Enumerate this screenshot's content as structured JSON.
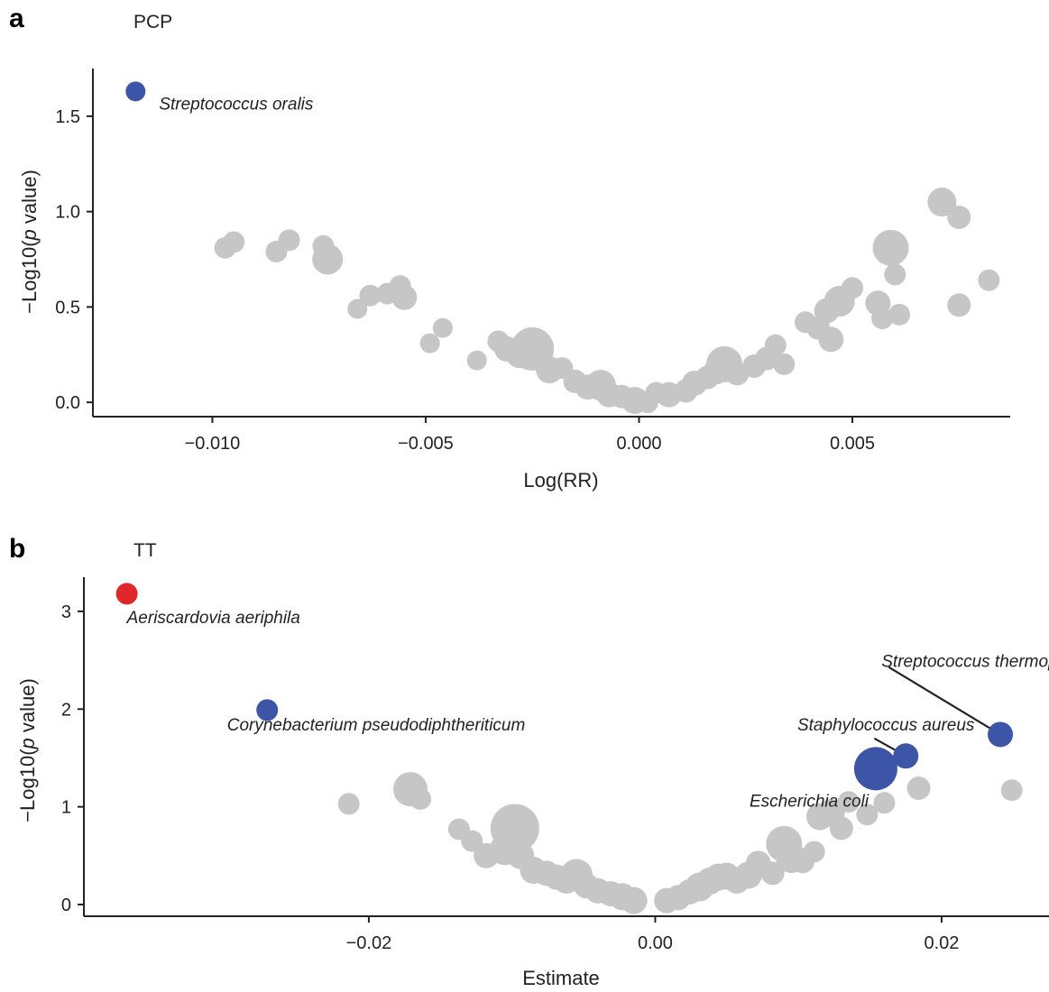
{
  "colors": {
    "neutral": "#c6c6c6",
    "blue": "#3c55a6",
    "red": "#e0282a",
    "axis": "#222222"
  },
  "chart_data": [
    {
      "type": "scatter",
      "panel_label": "a",
      "title": "PCP",
      "xlabel": "Log(RR)",
      "ylabel_pre": "−Log10(",
      "ylabel_it": "p",
      "ylabel_post": " value)",
      "xlim": [
        -0.0128,
        0.0087
      ],
      "ylim": [
        -0.075,
        1.75
      ],
      "xticks": [
        -0.01,
        -0.005,
        0,
        0.005
      ],
      "xtick_labels": [
        "−0.010",
        "−0.005",
        "0.000",
        "0.005"
      ],
      "yticks": [
        0,
        0.5,
        1.0,
        1.5
      ],
      "ytick_labels": [
        "0.0",
        "0.5",
        "1.0",
        "1.5"
      ],
      "grid": false,
      "points": [
        [
          -0.0118,
          1.63,
          11,
          "blue"
        ],
        [
          -0.0097,
          0.81,
          12,
          "grey"
        ],
        [
          -0.0095,
          0.84,
          12,
          "grey"
        ],
        [
          -0.0085,
          0.79,
          12,
          "grey"
        ],
        [
          -0.0082,
          0.85,
          12,
          "grey"
        ],
        [
          -0.0074,
          0.82,
          12,
          "grey"
        ],
        [
          -0.0073,
          0.75,
          17,
          "grey"
        ],
        [
          -0.0066,
          0.49,
          11,
          "grey"
        ],
        [
          -0.0063,
          0.56,
          12,
          "grey"
        ],
        [
          -0.0059,
          0.57,
          12,
          "grey"
        ],
        [
          -0.0056,
          0.61,
          12,
          "grey"
        ],
        [
          -0.0055,
          0.55,
          14,
          "grey"
        ],
        [
          -0.0049,
          0.31,
          11,
          "grey"
        ],
        [
          -0.0046,
          0.39,
          11,
          "grey"
        ],
        [
          -0.0038,
          0.22,
          11,
          "grey"
        ],
        [
          -0.0033,
          0.32,
          12,
          "grey"
        ],
        [
          -0.0031,
          0.28,
          14,
          "grey"
        ],
        [
          -0.0028,
          0.25,
          15,
          "grey"
        ],
        [
          -0.0025,
          0.28,
          24,
          "grey"
        ],
        [
          -0.0021,
          0.17,
          15,
          "grey"
        ],
        [
          -0.0018,
          0.18,
          12,
          "grey"
        ],
        [
          -0.0015,
          0.11,
          13,
          "grey"
        ],
        [
          -0.0012,
          0.08,
          14,
          "grey"
        ],
        [
          -0.0009,
          0.09,
          17,
          "grey"
        ],
        [
          -0.0007,
          0.04,
          14,
          "grey"
        ],
        [
          -0.0004,
          0.03,
          13,
          "grey"
        ],
        [
          -0.0001,
          0.01,
          15,
          "grey"
        ],
        [
          0.0002,
          0.0,
          12,
          "grey"
        ],
        [
          0.0004,
          0.05,
          12,
          "grey"
        ],
        [
          0.0007,
          0.04,
          14,
          "grey"
        ],
        [
          0.0011,
          0.06,
          13,
          "grey"
        ],
        [
          0.0013,
          0.1,
          14,
          "grey"
        ],
        [
          0.0016,
          0.13,
          13,
          "grey"
        ],
        [
          0.0018,
          0.16,
          14,
          "grey"
        ],
        [
          0.002,
          0.2,
          20,
          "grey"
        ],
        [
          0.0023,
          0.15,
          13,
          "grey"
        ],
        [
          0.0027,
          0.19,
          13,
          "grey"
        ],
        [
          0.003,
          0.23,
          13,
          "grey"
        ],
        [
          0.0032,
          0.3,
          12,
          "grey"
        ],
        [
          0.0034,
          0.2,
          12,
          "grey"
        ],
        [
          0.0039,
          0.42,
          12,
          "grey"
        ],
        [
          0.0042,
          0.39,
          13,
          "grey"
        ],
        [
          0.0044,
          0.48,
          14,
          "grey"
        ],
        [
          0.0045,
          0.33,
          14,
          "grey"
        ],
        [
          0.0047,
          0.53,
          17,
          "grey"
        ],
        [
          0.005,
          0.6,
          12,
          "grey"
        ],
        [
          0.0056,
          0.52,
          14,
          "grey"
        ],
        [
          0.0057,
          0.44,
          12,
          "grey"
        ],
        [
          0.0059,
          0.81,
          20,
          "grey"
        ],
        [
          0.006,
          0.67,
          12,
          "grey"
        ],
        [
          0.0061,
          0.46,
          12,
          "grey"
        ],
        [
          0.0071,
          1.05,
          16,
          "grey"
        ],
        [
          0.0075,
          0.97,
          13,
          "grey"
        ],
        [
          0.0075,
          0.51,
          13,
          "grey"
        ],
        [
          0.0082,
          0.64,
          12,
          "grey"
        ]
      ],
      "annotations": [
        {
          "text": "Streptococcus oralis",
          "x": -0.01125,
          "y": 1.535,
          "anchor": "start"
        }
      ]
    },
    {
      "type": "scatter",
      "panel_label": "b",
      "title": "TT",
      "xlabel": "Estimate",
      "ylabel_pre": "−Log10(",
      "ylabel_it": "p",
      "ylabel_post": " value)",
      "xlim": [
        -0.0399,
        0.0275
      ],
      "ylim": [
        -0.12,
        3.35
      ],
      "xticks": [
        -0.02,
        0,
        0.02
      ],
      "xtick_labels": [
        "−0.02",
        "0.00",
        "0.02"
      ],
      "yticks": [
        0,
        1,
        2,
        3
      ],
      "ytick_labels": [
        "0",
        "1",
        "2",
        "3"
      ],
      "grid": false,
      "points": [
        [
          -0.0369,
          3.18,
          12,
          "red"
        ],
        [
          -0.0271,
          1.99,
          12,
          "blue"
        ],
        [
          -0.0214,
          1.03,
          12,
          "grey"
        ],
        [
          -0.0171,
          1.18,
          19,
          "grey"
        ],
        [
          -0.0164,
          1.08,
          12,
          "grey"
        ],
        [
          -0.0137,
          0.77,
          12,
          "grey"
        ],
        [
          -0.0128,
          0.65,
          12,
          "grey"
        ],
        [
          -0.0118,
          0.5,
          14,
          "grey"
        ],
        [
          -0.0105,
          0.56,
          17,
          "grey"
        ],
        [
          -0.0098,
          0.78,
          27,
          "grey"
        ],
        [
          -0.0094,
          0.5,
          15,
          "grey"
        ],
        [
          -0.0085,
          0.35,
          15,
          "grey"
        ],
        [
          -0.0076,
          0.32,
          14,
          "grey"
        ],
        [
          -0.0069,
          0.28,
          14,
          "grey"
        ],
        [
          -0.0062,
          0.25,
          15,
          "grey"
        ],
        [
          -0.0055,
          0.3,
          18,
          "grey"
        ],
        [
          -0.0048,
          0.19,
          14,
          "grey"
        ],
        [
          -0.004,
          0.14,
          14,
          "grey"
        ],
        [
          -0.0031,
          0.11,
          14,
          "grey"
        ],
        [
          -0.0023,
          0.08,
          15,
          "grey"
        ],
        [
          -0.0015,
          0.04,
          15,
          "grey"
        ],
        [
          0.0008,
          0.04,
          14,
          "grey"
        ],
        [
          0.0016,
          0.07,
          14,
          "grey"
        ],
        [
          0.0024,
          0.13,
          14,
          "grey"
        ],
        [
          0.0031,
          0.18,
          16,
          "grey"
        ],
        [
          0.0038,
          0.24,
          15,
          "grey"
        ],
        [
          0.0044,
          0.28,
          15,
          "grey"
        ],
        [
          0.005,
          0.29,
          15,
          "grey"
        ],
        [
          0.0057,
          0.24,
          14,
          "grey"
        ],
        [
          0.0065,
          0.3,
          15,
          "grey"
        ],
        [
          0.0072,
          0.42,
          14,
          "grey"
        ],
        [
          0.0082,
          0.32,
          13,
          "grey"
        ],
        [
          0.009,
          0.62,
          20,
          "grey"
        ],
        [
          0.0095,
          0.48,
          17,
          "grey"
        ],
        [
          0.0103,
          0.44,
          13,
          "grey"
        ],
        [
          0.0111,
          0.54,
          12,
          "grey"
        ],
        [
          0.0115,
          0.9,
          15,
          "grey"
        ],
        [
          0.0123,
          0.94,
          15,
          "grey"
        ],
        [
          0.013,
          0.78,
          13,
          "grey"
        ],
        [
          0.0135,
          1.05,
          12,
          "grey"
        ],
        [
          0.0148,
          0.92,
          12,
          "grey"
        ],
        [
          0.016,
          1.04,
          12,
          "grey"
        ],
        [
          0.0184,
          1.19,
          13,
          "grey"
        ],
        [
          0.0249,
          1.17,
          12,
          "grey"
        ],
        [
          0.0154,
          1.39,
          24,
          "blue"
        ],
        [
          0.0175,
          1.52,
          14,
          "blue"
        ],
        [
          0.0241,
          1.74,
          14,
          "blue"
        ]
      ],
      "annotations": [
        {
          "text": "Aeriscardovia aeriphila",
          "x": -0.0369,
          "y": 2.88,
          "anchor": "start"
        },
        {
          "text": "Corynebacterium pseudodiphtheriticum",
          "x": -0.0299,
          "y": 1.78,
          "anchor": "start"
        },
        {
          "text": "Streptococcus thermophilus",
          "x": 0.0158,
          "y": 2.43,
          "anchor": "start"
        },
        {
          "text": "Staphylococcus aureus",
          "x": 0.0223,
          "y": 1.78,
          "anchor": "end"
        },
        {
          "text": "Escherichia coli",
          "x": 0.0149,
          "y": 1.0,
          "anchor": "end"
        }
      ],
      "leader_lines": [
        {
          "x1": 0.0163,
          "y1": 2.43,
          "x2": 0.0241,
          "y2": 1.74
        },
        {
          "x1": 0.0153,
          "y1": 1.7,
          "x2": 0.0175,
          "y2": 1.52
        }
      ]
    }
  ]
}
